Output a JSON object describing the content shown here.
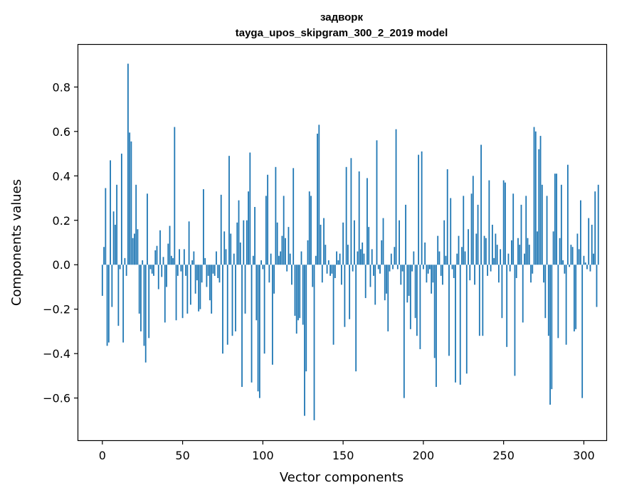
{
  "chart_data": {
    "type": "bar",
    "title_line1": "задворк",
    "title_line2": "tayga_upos_skipgram_300_2_2019 model",
    "xlabel": "Vector components",
    "ylabel": "Components values",
    "xlim": [
      -15,
      314
    ],
    "ylim": [
      -0.79,
      0.99
    ],
    "xticks": [
      0,
      50,
      100,
      150,
      200,
      250,
      300
    ],
    "xtick_labels": [
      "0",
      "50",
      "100",
      "150",
      "200",
      "250",
      "300"
    ],
    "yticks": [
      -0.6,
      -0.4,
      -0.2,
      0.0,
      0.2,
      0.4,
      0.6,
      0.8
    ],
    "ytick_labels": [
      "−0.6",
      "−0.4",
      "−0.2",
      "0.0",
      "0.2",
      "0.4",
      "0.6",
      "0.8"
    ],
    "bar_color": "#1f77b4",
    "values": [
      -0.14,
      0.08,
      0.345,
      -0.365,
      -0.35,
      0.47,
      -0.19,
      0.24,
      0.18,
      0.36,
      -0.275,
      -0.02,
      0.5,
      -0.35,
      0.03,
      -0.05,
      0.905,
      0.595,
      0.555,
      0.12,
      0.14,
      0.36,
      0.16,
      -0.22,
      -0.3,
      0.02,
      -0.365,
      -0.44,
      0.32,
      -0.33,
      -0.02,
      -0.04,
      -0.05,
      0.065,
      0.085,
      -0.11,
      0.155,
      -0.055,
      0.035,
      -0.26,
      -0.1,
      0.095,
      0.175,
      0.04,
      0.03,
      0.62,
      -0.25,
      -0.05,
      0.07,
      -0.03,
      -0.24,
      0.07,
      -0.05,
      -0.22,
      0.195,
      -0.18,
      0.02,
      0.06,
      -0.13,
      -0.07,
      -0.21,
      -0.2,
      -0.08,
      0.34,
      0.03,
      -0.1,
      -0.05,
      -0.16,
      -0.22,
      -0.04,
      -0.05,
      0.06,
      -0.06,
      -0.08,
      0.315,
      -0.4,
      0.15,
      0.07,
      -0.36,
      0.49,
      0.14,
      -0.32,
      0.05,
      -0.3,
      0.19,
      0.29,
      0.1,
      -0.55,
      0.2,
      -0.22,
      0.2,
      0.33,
      0.505,
      -0.53,
      0.04,
      0.26,
      -0.25,
      -0.57,
      -0.6,
      0.02,
      -0.02,
      -0.4,
      0.31,
      0.405,
      -0.08,
      0.05,
      -0.45,
      -0.13,
      0.44,
      0.19,
      0.04,
      0.06,
      0.13,
      0.31,
      0.12,
      -0.03,
      0.17,
      0.05,
      -0.09,
      0.435,
      -0.23,
      -0.31,
      -0.25,
      -0.24,
      0.06,
      -0.27,
      -0.68,
      -0.48,
      0.11,
      0.33,
      0.31,
      -0.1,
      -0.7,
      0.04,
      0.59,
      0.63,
      0.18,
      -0.08,
      0.21,
      0.09,
      -0.04,
      0.02,
      -0.05,
      -0.04,
      -0.36,
      -0.06,
      0.06,
      0.02,
      0.05,
      -0.09,
      0.19,
      -0.28,
      0.44,
      0.09,
      -0.245,
      0.48,
      -0.03,
      0.2,
      -0.48,
      0.06,
      0.42,
      0.07,
      0.1,
      0.05,
      -0.15,
      0.39,
      0.17,
      -0.1,
      0.07,
      -0.05,
      -0.18,
      0.56,
      -0.02,
      -0.04,
      0.11,
      0.21,
      -0.16,
      -0.13,
      -0.3,
      -0.03,
      0.05,
      -0.02,
      0.08,
      0.61,
      -0.02,
      0.2,
      -0.09,
      -0.03,
      -0.6,
      0.27,
      -0.17,
      -0.14,
      -0.29,
      -0.03,
      0.06,
      -0.24,
      -0.32,
      0.495,
      -0.38,
      0.51,
      -0.02,
      0.1,
      -0.08,
      -0.04,
      -0.02,
      -0.13,
      -0.08,
      -0.42,
      -0.55,
      0.13,
      0.06,
      -0.05,
      -0.09,
      0.2,
      0.04,
      0.43,
      -0.41,
      0.3,
      -0.02,
      -0.06,
      -0.53,
      0.05,
      0.13,
      -0.54,
      0.08,
      0.31,
      0.06,
      -0.49,
      0.16,
      -0.07,
      0.32,
      0.4,
      -0.09,
      0.14,
      0.27,
      -0.32,
      0.54,
      -0.32,
      0.13,
      0.12,
      -0.05,
      0.38,
      -0.03,
      0.18,
      0.03,
      0.14,
      0.09,
      -0.08,
      0.07,
      -0.24,
      0.38,
      0.37,
      -0.37,
      0.05,
      -0.03,
      0.11,
      0.32,
      -0.5,
      -0.06,
      0.12,
      0.09,
      0.27,
      -0.26,
      0.05,
      0.31,
      0.12,
      0.09,
      -0.08,
      -0.04,
      0.62,
      0.6,
      0.15,
      0.52,
      0.58,
      0.36,
      -0.08,
      -0.24,
      0.31,
      -0.32,
      -0.63,
      -0.56,
      0.15,
      0.41,
      0.41,
      -0.33,
      0.12,
      0.36,
      0.02,
      -0.04,
      -0.36,
      0.45,
      -0.01,
      0.09,
      0.08,
      -0.3,
      -0.29,
      0.14,
      0.07,
      0.29,
      -0.6,
      0.04,
      0.01,
      -0.02,
      0.21,
      -0.03,
      0.18,
      0.05,
      0.33,
      -0.19,
      0.36
    ]
  }
}
